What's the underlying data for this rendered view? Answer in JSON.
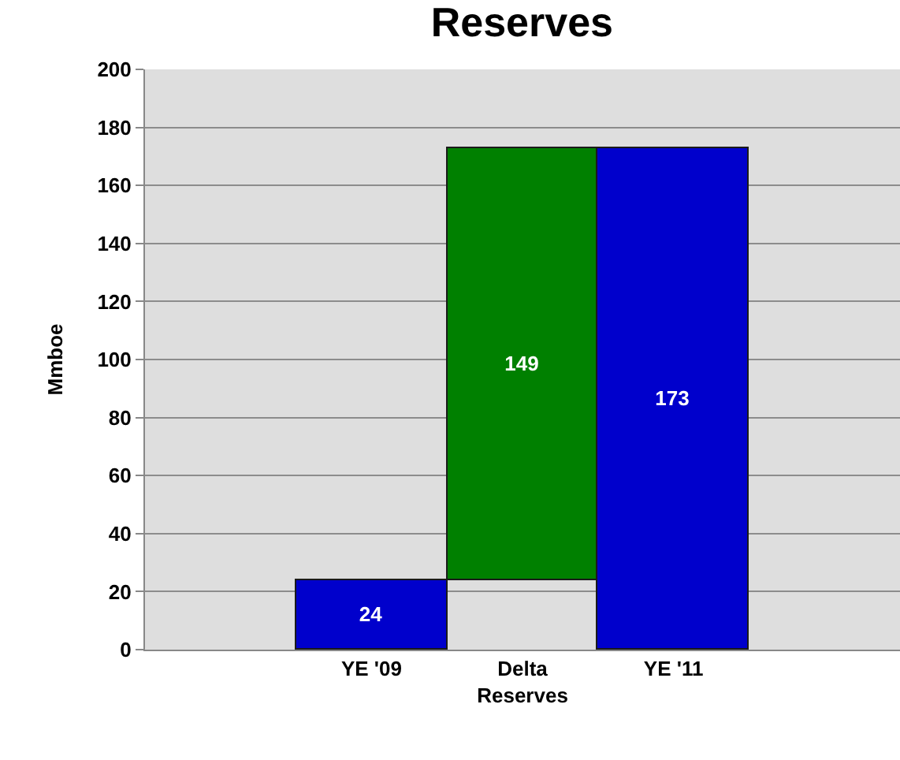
{
  "chart_data": {
    "type": "bar",
    "title": "Reserves",
    "ylabel": "Mmboe",
    "categories": [
      null,
      "YE '09",
      "Delta Reserves",
      "YE '11",
      null
    ],
    "values": [
      null,
      24,
      149,
      173,
      null
    ],
    "base": [
      null,
      0,
      24,
      0,
      null
    ],
    "colors": [
      "#0000cc",
      "#0000cc",
      "#008000",
      "#0000cc",
      "#0000cc"
    ],
    "ylim": [
      0,
      200
    ],
    "yticks": [
      0,
      20,
      40,
      60,
      80,
      100,
      120,
      140,
      160,
      180,
      200
    ],
    "grid": "y",
    "data_labels": true
  }
}
